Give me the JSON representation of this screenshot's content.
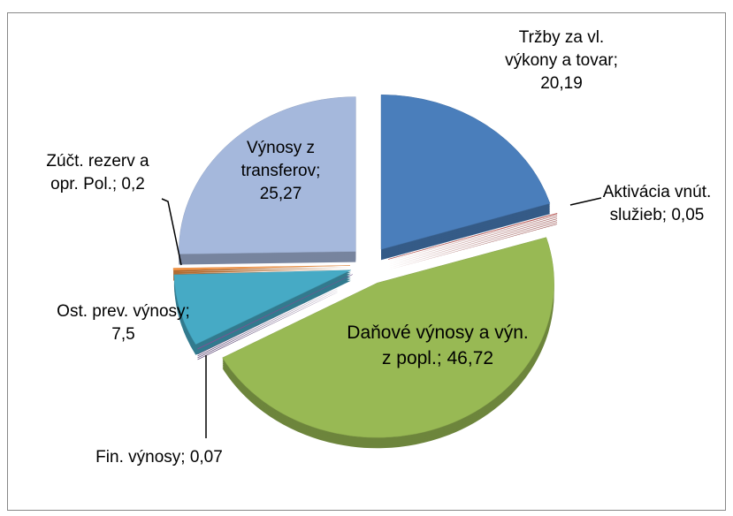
{
  "chart_data": {
    "type": "pie",
    "categories": [
      "Tržby za vl. výkony a tovar",
      "Aktivácia vnút. služieb",
      "Daňové výnosy a výn. z popl.",
      "Fin. výnosy",
      "Ost. prev. výnosy",
      "Zúčt. rezerv a opr. Pol.",
      "Výnosy z transferov"
    ],
    "values": [
      20.19,
      0.05,
      46.72,
      0.07,
      7.5,
      0.2,
      25.27
    ],
    "value_labels": [
      "20,19",
      "0,05",
      "46,72",
      "0,07",
      "7,5",
      "0,2",
      "25,27"
    ],
    "label_separator": ";",
    "colors": [
      "#4a7ebb",
      "#be4b48",
      "#98b954",
      "#7d60a0",
      "#46aac5",
      "#f79646",
      "#a5b8dc"
    ]
  }
}
